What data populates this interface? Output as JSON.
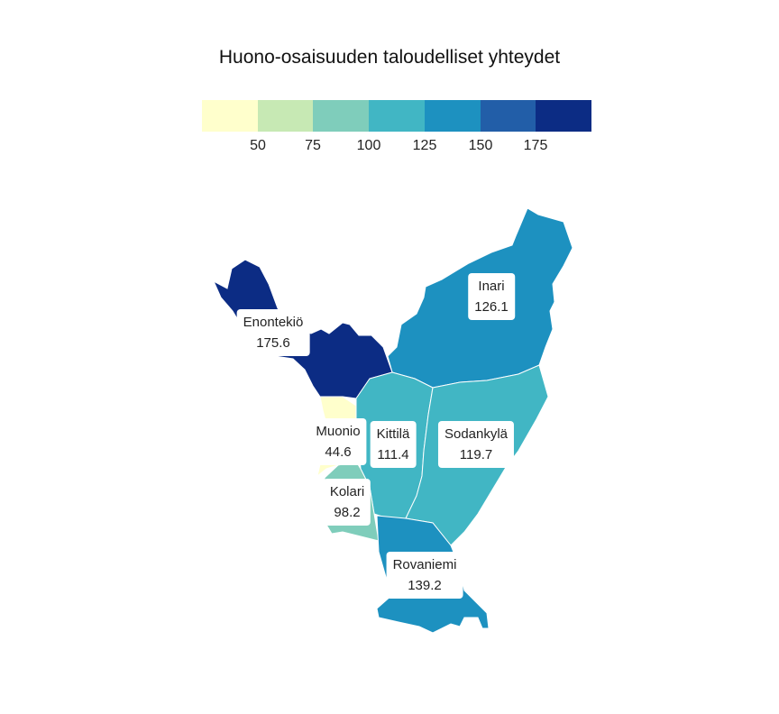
{
  "title": "Huono-osaisuuden taloudelliset yhteydet",
  "legend": {
    "colors": [
      "#ffffcc",
      "#c7e9b4",
      "#7fcdbb",
      "#41b6c4",
      "#1d91c0",
      "#225ea8",
      "#0c2c84"
    ],
    "ticks": [
      "50",
      "75",
      "100",
      "125",
      "150",
      "175"
    ]
  },
  "regions": [
    {
      "name": "Inari",
      "value": "126.1",
      "color": "#1d91c0"
    },
    {
      "name": "Enontekiö",
      "value": "175.6",
      "color": "#0c2c84"
    },
    {
      "name": "Muonio",
      "value": "44.6",
      "color": "#ffffcc"
    },
    {
      "name": "Kittilä",
      "value": "111.4",
      "color": "#41b6c4"
    },
    {
      "name": "Sodankylä",
      "value": "119.7",
      "color": "#41b6c4"
    },
    {
      "name": "Kolari",
      "value": "98.2",
      "color": "#7fcdbb"
    },
    {
      "name": "Rovaniemi",
      "value": "139.2",
      "color": "#1d91c0"
    }
  ]
}
